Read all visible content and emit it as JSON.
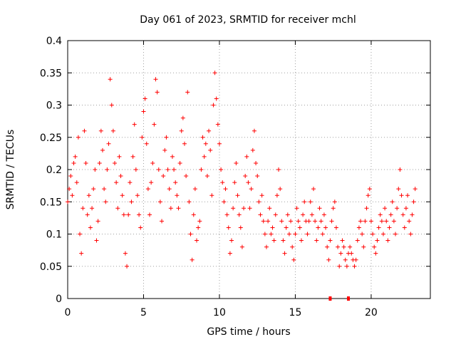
{
  "chart_data": {
    "type": "scatter",
    "title": "Day 061 of 2023, SRMTID for receiver mchl",
    "xlabel": "GPS time / hours",
    "ylabel": "SRMTID / TECUs",
    "xlim": [
      0,
      23.9
    ],
    "ylim": [
      0,
      0.4
    ],
    "x_ticks": [
      0,
      5,
      10,
      15,
      20
    ],
    "x_tick_labels": [
      "0",
      "5",
      "10",
      "15",
      "20"
    ],
    "y_ticks": [
      0,
      0.05,
      0.1,
      0.15,
      0.2,
      0.25,
      0.3,
      0.35,
      0.4
    ],
    "y_tick_labels": [
      "0",
      "0.05",
      "0.1",
      "0.15",
      "0.2",
      "0.25",
      "0.3",
      "0.35",
      "0.4"
    ],
    "grid": true,
    "marker": "plus",
    "series_color": "#ff0000",
    "series": [
      {
        "name": "SRMTID",
        "points": [
          [
            0.0,
            0.15
          ],
          [
            0.1,
            0.17
          ],
          [
            0.2,
            0.19
          ],
          [
            0.3,
            0.16
          ],
          [
            0.4,
            0.21
          ],
          [
            0.5,
            0.22
          ],
          [
            0.6,
            0.18
          ],
          [
            0.7,
            0.25
          ],
          [
            0.8,
            0.1
          ],
          [
            0.9,
            0.07
          ],
          [
            1.0,
            0.14
          ],
          [
            1.1,
            0.26
          ],
          [
            1.2,
            0.21
          ],
          [
            1.3,
            0.13
          ],
          [
            1.4,
            0.16
          ],
          [
            1.5,
            0.11
          ],
          [
            1.6,
            0.14
          ],
          [
            1.7,
            0.17
          ],
          [
            1.8,
            0.2
          ],
          [
            1.9,
            0.09
          ],
          [
            2.0,
            0.12
          ],
          [
            2.1,
            0.21
          ],
          [
            2.2,
            0.26
          ],
          [
            2.3,
            0.23
          ],
          [
            2.4,
            0.17
          ],
          [
            2.5,
            0.15
          ],
          [
            2.6,
            0.2
          ],
          [
            2.7,
            0.24
          ],
          [
            2.8,
            0.34
          ],
          [
            2.9,
            0.3
          ],
          [
            3.0,
            0.26
          ],
          [
            3.1,
            0.21
          ],
          [
            3.2,
            0.18
          ],
          [
            3.3,
            0.14
          ],
          [
            3.4,
            0.22
          ],
          [
            3.5,
            0.19
          ],
          [
            3.6,
            0.16
          ],
          [
            3.7,
            0.13
          ],
          [
            3.8,
            0.07
          ],
          [
            3.9,
            0.05
          ],
          [
            4.0,
            0.13
          ],
          [
            4.1,
            0.18
          ],
          [
            4.2,
            0.15
          ],
          [
            4.3,
            0.22
          ],
          [
            4.4,
            0.27
          ],
          [
            4.5,
            0.2
          ],
          [
            4.6,
            0.16
          ],
          [
            4.7,
            0.13
          ],
          [
            4.8,
            0.11
          ],
          [
            4.9,
            0.25
          ],
          [
            5.0,
            0.29
          ],
          [
            5.1,
            0.31
          ],
          [
            5.2,
            0.24
          ],
          [
            5.3,
            0.17
          ],
          [
            5.4,
            0.13
          ],
          [
            5.5,
            0.18
          ],
          [
            5.6,
            0.21
          ],
          [
            5.7,
            0.27
          ],
          [
            5.8,
            0.34
          ],
          [
            5.9,
            0.32
          ],
          [
            6.0,
            0.2
          ],
          [
            6.1,
            0.15
          ],
          [
            6.2,
            0.12
          ],
          [
            6.3,
            0.19
          ],
          [
            6.4,
            0.23
          ],
          [
            6.5,
            0.25
          ],
          [
            6.6,
            0.2
          ],
          [
            6.7,
            0.17
          ],
          [
            6.8,
            0.14
          ],
          [
            6.9,
            0.22
          ],
          [
            7.0,
            0.2
          ],
          [
            7.1,
            0.18
          ],
          [
            7.2,
            0.16
          ],
          [
            7.3,
            0.14
          ],
          [
            7.4,
            0.21
          ],
          [
            7.5,
            0.26
          ],
          [
            7.6,
            0.28
          ],
          [
            7.7,
            0.24
          ],
          [
            7.8,
            0.19
          ],
          [
            7.9,
            0.32
          ],
          [
            8.0,
            0.15
          ],
          [
            8.1,
            0.1
          ],
          [
            8.2,
            0.06
          ],
          [
            8.3,
            0.13
          ],
          [
            8.4,
            0.17
          ],
          [
            8.5,
            0.09
          ],
          [
            8.6,
            0.11
          ],
          [
            8.7,
            0.12
          ],
          [
            8.8,
            0.2
          ],
          [
            8.9,
            0.25
          ],
          [
            9.0,
            0.22
          ],
          [
            9.1,
            0.24
          ],
          [
            9.2,
            0.19
          ],
          [
            9.3,
            0.26
          ],
          [
            9.4,
            0.23
          ],
          [
            9.5,
            0.16
          ],
          [
            9.6,
            0.3
          ],
          [
            9.7,
            0.35
          ],
          [
            9.8,
            0.31
          ],
          [
            9.9,
            0.27
          ],
          [
            10.0,
            0.24
          ],
          [
            10.1,
            0.2
          ],
          [
            10.2,
            0.18
          ],
          [
            10.3,
            0.15
          ],
          [
            10.4,
            0.17
          ],
          [
            10.5,
            0.13
          ],
          [
            10.6,
            0.11
          ],
          [
            10.7,
            0.07
          ],
          [
            10.8,
            0.09
          ],
          [
            10.9,
            0.14
          ],
          [
            11.0,
            0.18
          ],
          [
            11.1,
            0.21
          ],
          [
            11.2,
            0.16
          ],
          [
            11.3,
            0.13
          ],
          [
            11.4,
            0.11
          ],
          [
            11.5,
            0.08
          ],
          [
            11.6,
            0.14
          ],
          [
            11.7,
            0.19
          ],
          [
            11.8,
            0.22
          ],
          [
            11.9,
            0.18
          ],
          [
            12.0,
            0.14
          ],
          [
            12.1,
            0.17
          ],
          [
            12.2,
            0.23
          ],
          [
            12.3,
            0.26
          ],
          [
            12.4,
            0.21
          ],
          [
            12.5,
            0.19
          ],
          [
            12.6,
            0.15
          ],
          [
            12.7,
            0.13
          ],
          [
            12.8,
            0.16
          ],
          [
            12.9,
            0.12
          ],
          [
            13.0,
            0.1
          ],
          [
            13.1,
            0.08
          ],
          [
            13.2,
            0.12
          ],
          [
            13.3,
            0.14
          ],
          [
            13.4,
            0.1
          ],
          [
            13.5,
            0.11
          ],
          [
            13.6,
            0.09
          ],
          [
            13.7,
            0.13
          ],
          [
            13.8,
            0.16
          ],
          [
            13.9,
            0.2
          ],
          [
            14.0,
            0.17
          ],
          [
            14.1,
            0.12
          ],
          [
            14.2,
            0.09
          ],
          [
            14.3,
            0.07
          ],
          [
            14.4,
            0.11
          ],
          [
            14.5,
            0.13
          ],
          [
            14.6,
            0.1
          ],
          [
            14.7,
            0.12
          ],
          [
            14.8,
            0.08
          ],
          [
            14.9,
            0.06
          ],
          [
            15.0,
            0.1
          ],
          [
            15.1,
            0.14
          ],
          [
            15.2,
            0.12
          ],
          [
            15.3,
            0.11
          ],
          [
            15.4,
            0.09
          ],
          [
            15.5,
            0.13
          ],
          [
            15.6,
            0.15
          ],
          [
            15.7,
            0.12
          ],
          [
            15.8,
            0.1
          ],
          [
            15.9,
            0.12
          ],
          [
            16.0,
            0.15
          ],
          [
            16.1,
            0.13
          ],
          [
            16.2,
            0.17
          ],
          [
            16.3,
            0.12
          ],
          [
            16.4,
            0.09
          ],
          [
            16.5,
            0.11
          ],
          [
            16.6,
            0.14
          ],
          [
            16.7,
            0.12
          ],
          [
            16.8,
            0.1
          ],
          [
            16.9,
            0.13
          ],
          [
            17.0,
            0.11
          ],
          [
            17.1,
            0.08
          ],
          [
            17.2,
            0.06
          ],
          [
            17.3,
            0.09
          ],
          [
            17.4,
            0.12
          ],
          [
            17.5,
            0.14
          ],
          [
            17.6,
            0.15
          ],
          [
            17.7,
            0.11
          ],
          [
            17.8,
            0.08
          ],
          [
            17.9,
            0.05
          ],
          [
            18.0,
            0.07
          ],
          [
            18.1,
            0.09
          ],
          [
            18.2,
            0.08
          ],
          [
            18.3,
            0.06
          ],
          [
            18.4,
            0.05
          ],
          [
            18.5,
            0.07
          ],
          [
            18.6,
            0.08
          ],
          [
            18.7,
            0.07
          ],
          [
            18.8,
            0.06
          ],
          [
            18.9,
            0.05
          ],
          [
            19.0,
            0.06
          ],
          [
            19.1,
            0.09
          ],
          [
            19.2,
            0.11
          ],
          [
            19.3,
            0.12
          ],
          [
            19.4,
            0.1
          ],
          [
            19.5,
            0.08
          ],
          [
            19.6,
            0.12
          ],
          [
            19.7,
            0.14
          ],
          [
            19.8,
            0.16
          ],
          [
            19.9,
            0.17
          ],
          [
            20.0,
            0.12
          ],
          [
            20.1,
            0.1
          ],
          [
            20.2,
            0.08
          ],
          [
            20.3,
            0.07
          ],
          [
            20.4,
            0.09
          ],
          [
            20.5,
            0.11
          ],
          [
            20.6,
            0.13
          ],
          [
            20.7,
            0.12
          ],
          [
            20.8,
            0.1
          ],
          [
            20.9,
            0.14
          ],
          [
            21.0,
            0.12
          ],
          [
            21.1,
            0.09
          ],
          [
            21.2,
            0.11
          ],
          [
            21.3,
            0.13
          ],
          [
            21.4,
            0.15
          ],
          [
            21.5,
            0.12
          ],
          [
            21.6,
            0.1
          ],
          [
            21.7,
            0.14
          ],
          [
            21.8,
            0.17
          ],
          [
            21.9,
            0.2
          ],
          [
            22.0,
            0.16
          ],
          [
            22.1,
            0.13
          ],
          [
            22.2,
            0.11
          ],
          [
            22.3,
            0.14
          ],
          [
            22.4,
            0.16
          ],
          [
            22.5,
            0.12
          ],
          [
            22.6,
            0.1
          ],
          [
            22.7,
            0.13
          ],
          [
            22.8,
            0.15
          ],
          [
            22.9,
            0.17
          ]
        ]
      }
    ],
    "markers_on_x_axis": [
      17.3,
      18.5
    ]
  }
}
